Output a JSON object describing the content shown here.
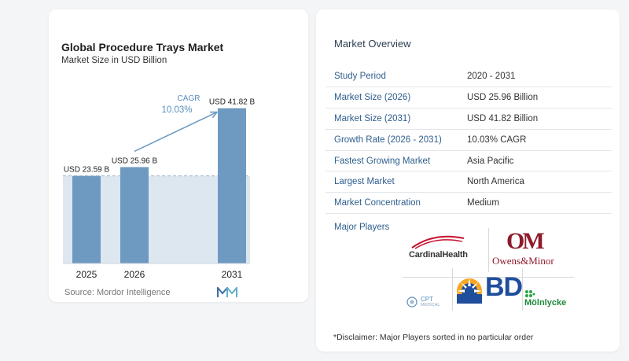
{
  "chart": {
    "title": "Global Procedure Trays Market",
    "subtitle": "Market Size in USD Billion",
    "cagr_label": "CAGR",
    "cagr_value": "10.03%",
    "source": "Source:  Mordor Intelligence"
  },
  "chart_data": {
    "type": "bar",
    "title": "Global Procedure Trays Market",
    "subtitle": "Market Size in USD Billion",
    "categories": [
      "2025",
      "2026",
      "2031"
    ],
    "values": [
      23.59,
      25.96,
      41.82
    ],
    "data_labels": [
      "USD 23.59 B",
      "USD 25.96 B",
      "USD 41.82 B"
    ],
    "ylim": [
      0,
      43
    ],
    "grid": false,
    "annotation": {
      "text": "CAGR 10.03%",
      "type": "arrow"
    },
    "colors": {
      "bar": "#6e9ac1",
      "baseline_band": "#dce7f0",
      "arrow": "#6e9ac1",
      "cagr_text": "#5a8dbb"
    }
  },
  "overview": {
    "title": "Market Overview",
    "rows": [
      {
        "label": "Study Period",
        "value": "2020 - 2031"
      },
      {
        "label": "Market Size (2026)",
        "value": "USD 25.96 Billion"
      },
      {
        "label": "Market Size (2031)",
        "value": "USD 41.82 Billion"
      },
      {
        "label": "Growth Rate (2026 - 2031)",
        "value": "10.03% CAGR"
      },
      {
        "label": "Fastest Growing Market",
        "value": "Asia Pacific"
      },
      {
        "label": "Largest Market",
        "value": "North America"
      },
      {
        "label": "Market Concentration",
        "value": "Medium"
      }
    ]
  },
  "players": {
    "label": "Major Players",
    "logos": [
      "Cardinal Health",
      "Owens & Minor",
      "CPT Medical",
      "BD",
      "Mölnlycke"
    ],
    "text": {
      "cardinal": "CardinalHealth",
      "om_mark": "OM",
      "owens": "Owens&Minor",
      "cpt": "CPT",
      "cpt_sub": "MEDICAL",
      "bd": "BD",
      "molnlycke": "Mölnlycke"
    }
  },
  "disclaimer": "*Disclaimer: Major Players sorted in no particular order"
}
